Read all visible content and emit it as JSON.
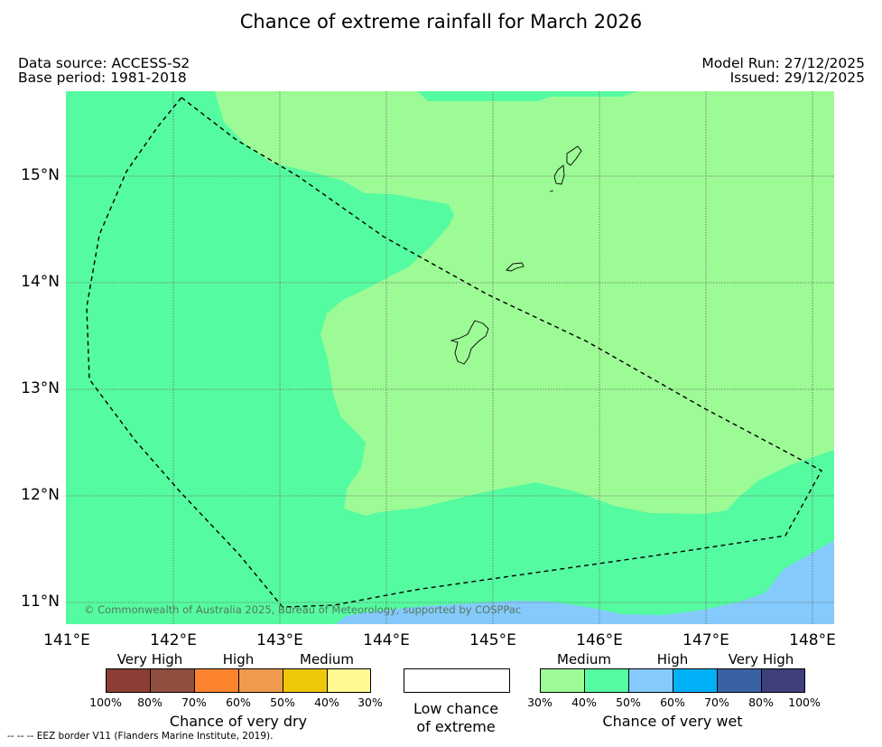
{
  "title": "Chance of extreme rainfall for March 2026",
  "data_source": "Data source: ACCESS-S2",
  "base_period": "Base period: 1981-2018",
  "model_run": "Model Run: 27/12/2025",
  "issued": "Issued: 29/12/2025",
  "map": {
    "lon_range": [
      141.0,
      148.2
    ],
    "lat_range": [
      10.8,
      15.8
    ],
    "lat_labels": [
      "15°N",
      "14°N",
      "13°N",
      "12°N",
      "11°N"
    ],
    "lon_labels": [
      "141°E",
      "142°E",
      "143°E",
      "144°E",
      "145°E",
      "146°E",
      "147°E",
      "148°E"
    ],
    "grid": true,
    "copyright": "© Commonwealth of Australia 2025, Bureau of Meteorology, supported by COSPPac",
    "colors": {
      "medium_wet": "#9dfb96",
      "high_wet_50": "#55fba0",
      "wet_50_60": "#84cafc",
      "grid": "#6a6a6a",
      "border": "#000000"
    }
  },
  "legend": {
    "dry": {
      "categories": [
        "Very High",
        "High",
        "Medium"
      ],
      "colors": [
        "#8d3d33",
        "#8e4f3e",
        "#fd842f",
        "#ee9b4d",
        "#eec808",
        "#fff98f"
      ],
      "ticks": [
        "100%",
        "80%",
        "70%",
        "60%",
        "50%",
        "40%",
        "30%"
      ],
      "caption": "Chance of very dry"
    },
    "low": {
      "line1": "Low chance",
      "line2": "of extreme",
      "color": "#ffffff"
    },
    "wet": {
      "categories": [
        "Medium",
        "High",
        "Very High"
      ],
      "colors": [
        "#9dfb96",
        "#55fba0",
        "#84cafc",
        "#00b1f8",
        "#3a61a4",
        "#3f3f7c"
      ],
      "ticks": [
        "30%",
        "40%",
        "50%",
        "60%",
        "70%",
        "80%",
        "100%"
      ],
      "caption": "Chance of very wet"
    }
  },
  "footnote": "--  --  -- EEZ border V11 (Flanders Marine Institute, 2019)."
}
